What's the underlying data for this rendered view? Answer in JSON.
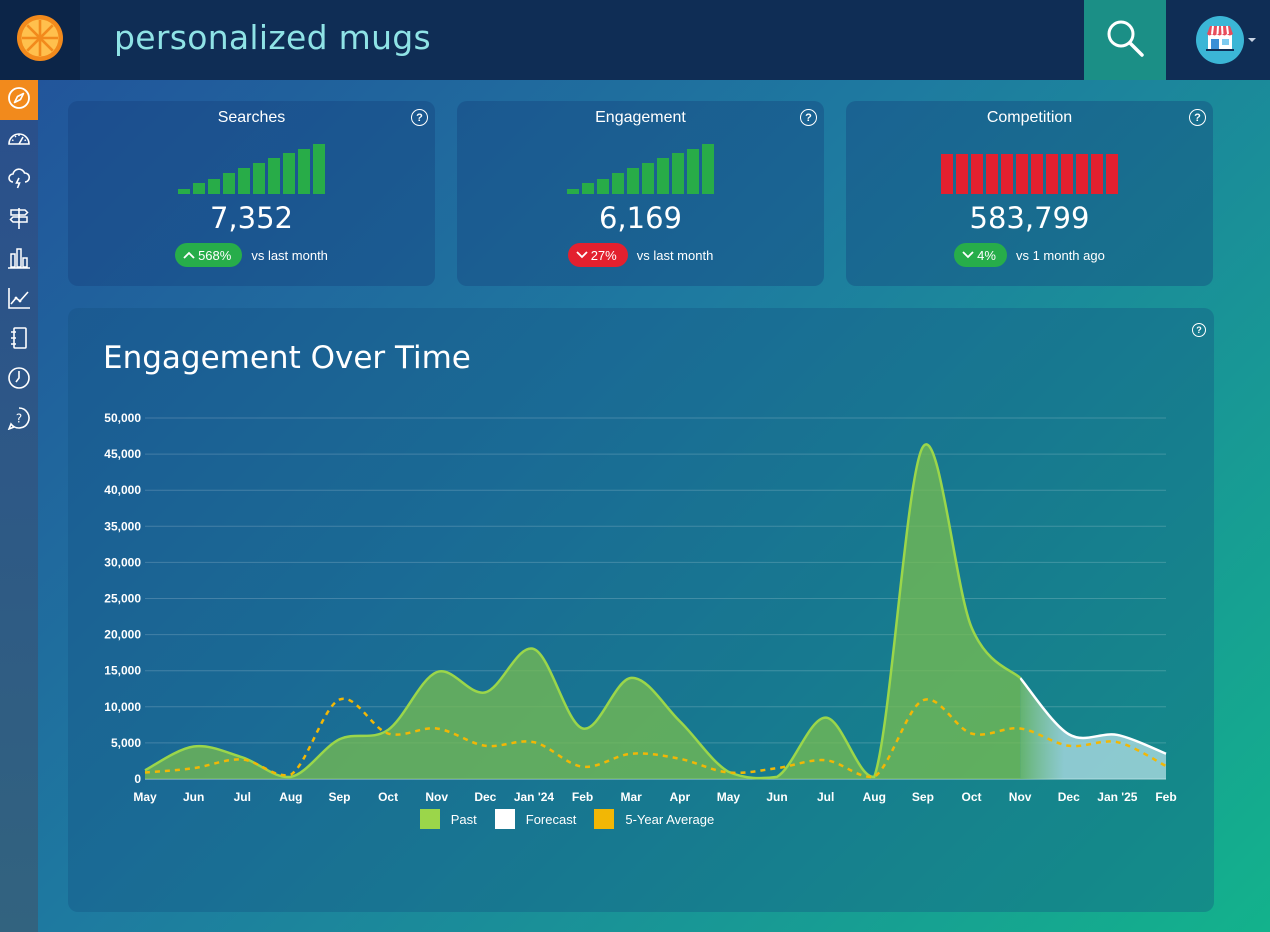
{
  "header": {
    "search_query": "personalized mugs",
    "logo_icon": "orange-slice-icon",
    "search_icon": "search-icon",
    "shop_icon": "shop-storefront-icon"
  },
  "sidebar": {
    "items": [
      {
        "icon": "compass-icon",
        "active": true
      },
      {
        "icon": "speedometer-icon",
        "active": false
      },
      {
        "icon": "cloud-lightning-icon",
        "active": false
      },
      {
        "icon": "signpost-icon",
        "active": false
      },
      {
        "icon": "bar-chart-icon",
        "active": false
      },
      {
        "icon": "line-chart-icon",
        "active": false
      },
      {
        "icon": "notebook-icon",
        "active": false
      },
      {
        "icon": "clock-icon",
        "active": false
      },
      {
        "icon": "help-bubble-icon",
        "active": false
      }
    ]
  },
  "cards": [
    {
      "title": "Searches",
      "value": "7,352",
      "change": "568%",
      "direction": "up",
      "color": "green",
      "period": "vs last month",
      "bars": [
        0.1,
        0.22,
        0.3,
        0.42,
        0.52,
        0.62,
        0.72,
        0.82,
        0.9,
        1.0
      ]
    },
    {
      "title": "Engagement",
      "value": "6,169",
      "change": "27%",
      "direction": "down",
      "color": "red",
      "period": "vs last month",
      "bars": [
        0.1,
        0.22,
        0.3,
        0.42,
        0.52,
        0.62,
        0.72,
        0.82,
        0.9,
        1.0
      ]
    },
    {
      "title": "Competition",
      "value": "583,799",
      "change": "4%",
      "direction": "down",
      "color": "green",
      "period": "vs 1 month ago",
      "bars": [
        1,
        1,
        1,
        1,
        1,
        1,
        1,
        1,
        1,
        1,
        1,
        1
      ]
    }
  ],
  "chart_panel": {
    "title": "Engagement Over Time"
  },
  "chart_data": {
    "type": "area",
    "title": "Engagement Over Time",
    "x_labels": [
      "May",
      "Jun",
      "Jul",
      "Aug",
      "Sep",
      "Oct",
      "Nov",
      "Dec",
      "Jan '24",
      "Feb",
      "Mar",
      "Apr",
      "May",
      "Jun",
      "Jul",
      "Aug",
      "Sep",
      "Oct",
      "Nov",
      "Dec",
      "Jan '25",
      "Feb"
    ],
    "y_ticks": [
      0,
      5000,
      10000,
      15000,
      20000,
      25000,
      30000,
      35000,
      40000,
      45000,
      50000
    ],
    "y_tick_labels": [
      "0",
      "5,000",
      "10,000",
      "15,000",
      "20,000",
      "25,000",
      "30,000",
      "35,000",
      "40,000",
      "45,000",
      "50,000"
    ],
    "ylim": [
      0,
      50000
    ],
    "grid": true,
    "legend_position": "bottom",
    "series": [
      {
        "name": "Past",
        "color": "#9bd64a",
        "values": [
          1200,
          4500,
          3000,
          300,
          5500,
          6800,
          14800,
          12000,
          18000,
          7000,
          14000,
          8000,
          1000,
          300,
          8500,
          300,
          46000,
          21000,
          14000,
          null,
          null,
          null
        ]
      },
      {
        "name": "Forecast",
        "color": "#ffffff",
        "values": [
          null,
          null,
          null,
          null,
          null,
          null,
          null,
          null,
          null,
          null,
          null,
          null,
          null,
          null,
          null,
          null,
          null,
          null,
          14000,
          6200,
          6100,
          3500
        ]
      },
      {
        "name": "5-Year Average",
        "color": "#f2b705",
        "values": [
          900,
          1500,
          2700,
          600,
          11000,
          6300,
          7000,
          4600,
          5100,
          1700,
          3500,
          2800,
          900,
          1500,
          2600,
          300,
          10900,
          6300,
          7000,
          4600,
          5100,
          1800
        ]
      }
    ]
  }
}
